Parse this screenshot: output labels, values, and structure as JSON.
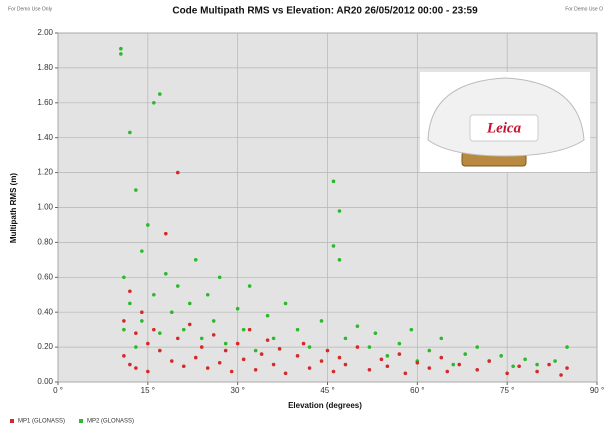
{
  "chart_data": {
    "type": "scatter",
    "title": "Code Multipath RMS vs Elevation: AR20 26/05/2012 00:00 - 23:59",
    "annotations": [
      "For Demo Use Only",
      "For Demo Use O",
      "Leica"
    ],
    "x_label": "Elevation (degrees)",
    "y_label": "Multipath RMS (m)",
    "xlim": [
      0,
      90
    ],
    "ylim": [
      0,
      2
    ],
    "xticks": [
      {
        "value": 0,
        "label": "0 °"
      },
      {
        "value": 15,
        "label": "15 °"
      },
      {
        "value": 30,
        "label": "30 °"
      },
      {
        "value": 45,
        "label": "45 °"
      },
      {
        "value": 60,
        "label": "60 °"
      },
      {
        "value": 75,
        "label": "75 °"
      },
      {
        "value": 90,
        "label": "90 °"
      }
    ],
    "yticks": [
      {
        "value": 0,
        "label": "0.00"
      },
      {
        "value": 0.2,
        "label": "0.20"
      },
      {
        "value": 0.4,
        "label": "0.40"
      },
      {
        "value": 0.6,
        "label": "0.60"
      },
      {
        "value": 0.8,
        "label": "0.80"
      },
      {
        "value": 1,
        "label": "1.00"
      },
      {
        "value": 1.2,
        "label": "1.20"
      },
      {
        "value": 1.4,
        "label": "1.40"
      },
      {
        "value": 1.6,
        "label": "1.60"
      },
      {
        "value": 1.8,
        "label": "1.80"
      },
      {
        "value": 2,
        "label": "2.00"
      }
    ],
    "grid": true,
    "legend": "bottom-left",
    "series": [
      {
        "name": "MP1 (GLONASS)",
        "color": "#d42a2a",
        "x": [
          11,
          11,
          12,
          12,
          13,
          13,
          14,
          15,
          15,
          16,
          17,
          18,
          19,
          20,
          20,
          21,
          22,
          23,
          24,
          25,
          26,
          27,
          28,
          29,
          30,
          31,
          32,
          33,
          34,
          35,
          36,
          37,
          38,
          40,
          41,
          42,
          44,
          45,
          46,
          47,
          48,
          50,
          52,
          54,
          55,
          57,
          58,
          60,
          62,
          64,
          65,
          67,
          70,
          72,
          75,
          77,
          80,
          82,
          84,
          85
        ],
        "values": [
          0.35,
          0.15,
          0.52,
          0.1,
          0.28,
          0.08,
          0.4,
          0.22,
          0.06,
          0.3,
          0.18,
          0.85,
          0.12,
          1.2,
          0.25,
          0.09,
          0.33,
          0.14,
          0.2,
          0.08,
          0.27,
          0.11,
          0.18,
          0.06,
          0.22,
          0.13,
          0.3,
          0.07,
          0.16,
          0.24,
          0.1,
          0.19,
          0.05,
          0.15,
          0.22,
          0.08,
          0.12,
          0.18,
          0.06,
          0.14,
          0.1,
          0.2,
          0.07,
          0.13,
          0.09,
          0.16,
          0.05,
          0.11,
          0.08,
          0.14,
          0.06,
          0.1,
          0.07,
          0.12,
          0.05,
          0.09,
          0.06,
          0.1,
          0.04,
          0.08
        ]
      },
      {
        "name": "MP2 (GLONASS)",
        "color": "#2db82d",
        "x": [
          10.5,
          10.5,
          11,
          11,
          12,
          12,
          13,
          13,
          14,
          14,
          15,
          16,
          16,
          17,
          17,
          18,
          19,
          20,
          21,
          22,
          23,
          24,
          25,
          26,
          27,
          28,
          30,
          31,
          32,
          33,
          35,
          36,
          38,
          40,
          42,
          44,
          46,
          46,
          47,
          47,
          48,
          50,
          52,
          53,
          55,
          57,
          59,
          60,
          62,
          64,
          66,
          68,
          70,
          72,
          74,
          76,
          78,
          80,
          83,
          85
        ],
        "values": [
          1.91,
          1.88,
          0.6,
          0.3,
          1.43,
          0.45,
          1.1,
          0.2,
          0.75,
          0.35,
          0.9,
          1.6,
          0.5,
          1.65,
          0.28,
          0.62,
          0.4,
          0.55,
          0.3,
          0.45,
          0.7,
          0.25,
          0.5,
          0.35,
          0.6,
          0.22,
          0.42,
          0.3,
          0.55,
          0.18,
          0.38,
          0.25,
          0.45,
          0.3,
          0.2,
          0.35,
          1.15,
          0.78,
          0.98,
          0.7,
          0.25,
          0.32,
          0.2,
          0.28,
          0.15,
          0.22,
          0.3,
          0.12,
          0.18,
          0.25,
          0.1,
          0.16,
          0.2,
          0.12,
          0.15,
          0.09,
          0.13,
          0.1,
          0.12,
          0.2
        ]
      }
    ]
  }
}
